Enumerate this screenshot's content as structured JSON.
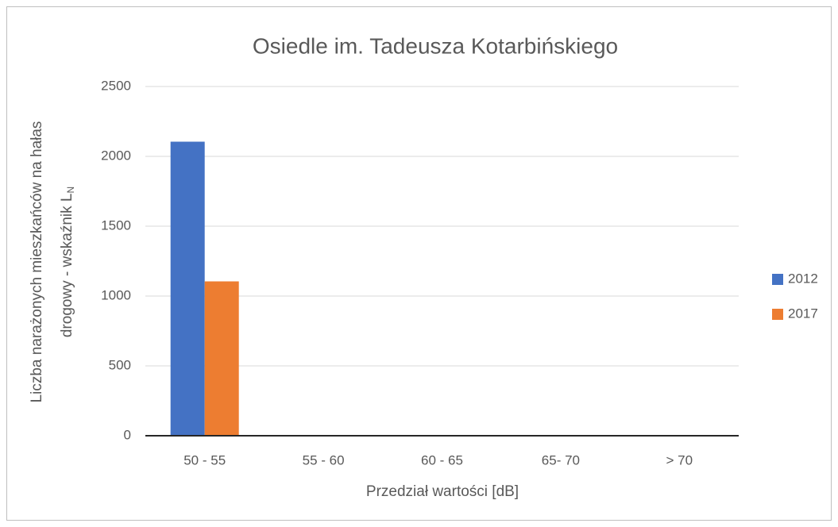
{
  "chart_data": {
    "type": "bar",
    "title": "Osiedle im. Tadeusza Kotarbińskiego",
    "x_label": "Przedział wartości [dB]",
    "y_label": {
      "line1": "Liczba narażonych mieszkańców na hałas",
      "line2": "drogowy - wskaźnik L",
      "subscript": "N"
    },
    "categories": [
      "50 - 55",
      "55 - 60",
      "60 - 65",
      "65-  70",
      "> 70"
    ],
    "series": [
      {
        "name": "2012",
        "color": "#4472c4",
        "values": [
          2105,
          0,
          0,
          0,
          0
        ]
      },
      {
        "name": "2017",
        "color": "#ed7d31",
        "values": [
          1105,
          0,
          0,
          0,
          0
        ]
      }
    ],
    "ylim": [
      0,
      2500
    ],
    "yticks": [
      0,
      500,
      1000,
      1500,
      2000,
      2500
    ],
    "grid": true,
    "legend": "right"
  }
}
